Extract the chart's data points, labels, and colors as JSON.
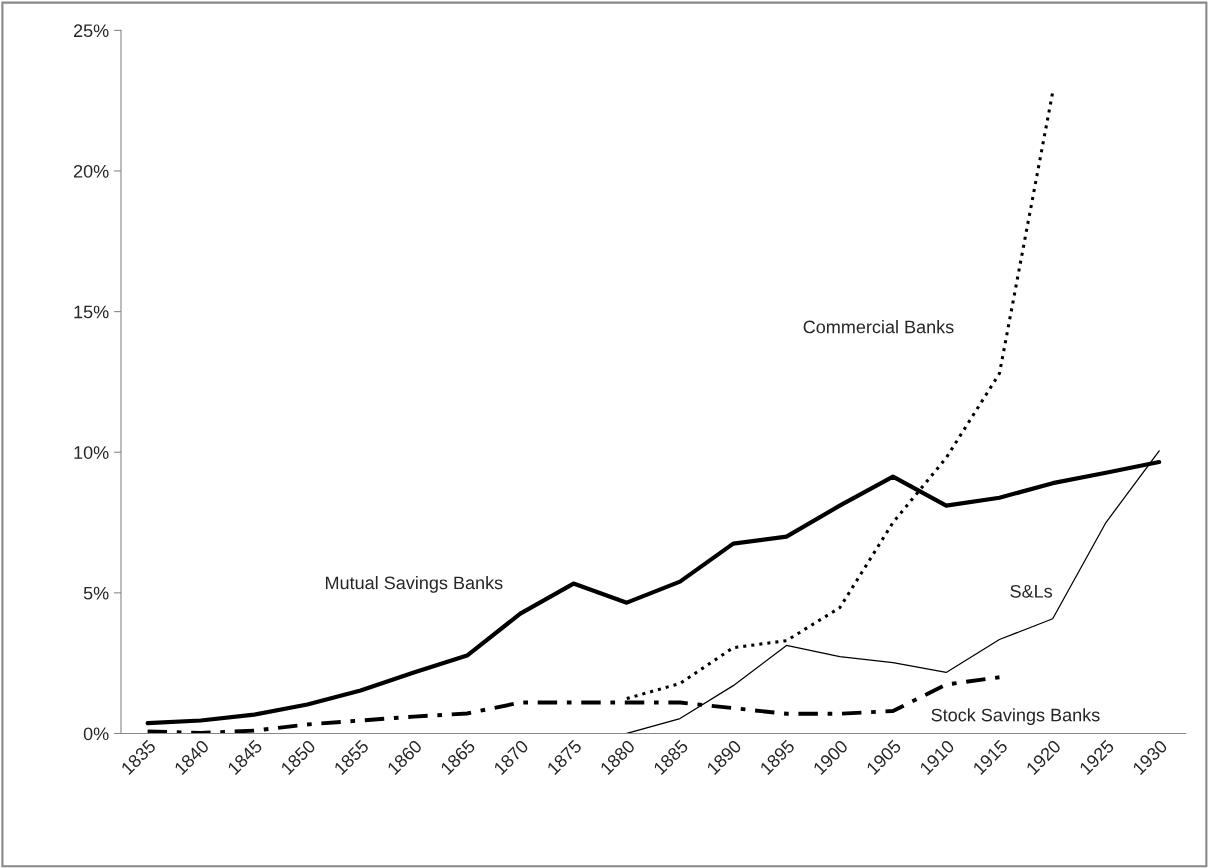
{
  "chart_data": {
    "type": "line",
    "categories": [
      "1835",
      "1840",
      "1845",
      "1850",
      "1855",
      "1860",
      "1865",
      "1870",
      "1875",
      "1880",
      "1885",
      "1890",
      "1895",
      "1900",
      "1905",
      "1910",
      "1915",
      "1920",
      "1925",
      "1930"
    ],
    "series": [
      {
        "name": "Mutual Savings Banks",
        "color": "#000000",
        "line_style": "solid",
        "values": [
          0.37,
          0.46,
          0.67,
          1.03,
          1.53,
          2.17,
          2.77,
          4.26,
          5.33,
          4.65,
          5.4,
          6.75,
          7.0,
          8.1,
          9.13,
          8.1,
          8.38,
          8.9,
          9.27,
          9.65
        ]
      },
      {
        "name": "Commercial Banks",
        "color": "#000000",
        "line_style": "dotted",
        "values": [
          null,
          null,
          null,
          null,
          null,
          null,
          null,
          null,
          null,
          1.24,
          1.78,
          3.05,
          3.3,
          4.47,
          7.5,
          9.8,
          12.8,
          22.8,
          null,
          null
        ]
      },
      {
        "name": "S&Ls",
        "color": "#000000",
        "line_style": "solid",
        "values": [
          null,
          null,
          null,
          null,
          null,
          null,
          null,
          null,
          null,
          0.0,
          0.53,
          1.7,
          3.13,
          2.73,
          2.52,
          2.17,
          3.34,
          4.08,
          7.5,
          10.05
        ]
      },
      {
        "name": "Stock Savings Banks",
        "color": "#000000",
        "line_style": "dashdot",
        "values": [
          0.07,
          0.02,
          0.1,
          0.32,
          0.46,
          0.6,
          0.71,
          1.1,
          1.1,
          1.1,
          1.1,
          0.9,
          0.7,
          0.7,
          0.8,
          1.74,
          2.0,
          null,
          null,
          null
        ]
      }
    ],
    "ylim": [
      0,
      25
    ],
    "yticks": [
      {
        "value": 0,
        "label": "0%"
      },
      {
        "value": 5,
        "label": "5%"
      },
      {
        "value": 10,
        "label": "10%"
      },
      {
        "value": 15,
        "label": "15%"
      },
      {
        "value": 20,
        "label": "20%"
      },
      {
        "value": 25,
        "label": "25%"
      }
    ],
    "grid": false,
    "legend": false,
    "marker": "none"
  }
}
